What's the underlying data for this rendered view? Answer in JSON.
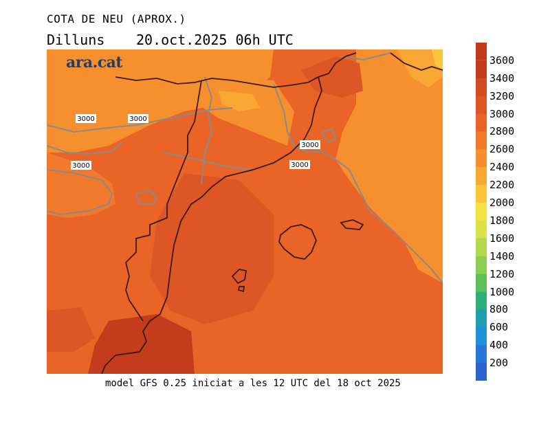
{
  "header": {
    "title": "COTA DE NEU (APROX.)",
    "day": "Dilluns",
    "date": "20.oct.2025 06h UTC"
  },
  "map": {
    "logo": "ara.cat",
    "contour_labels": [
      "3000",
      "3000",
      "3000",
      "3000",
      "3000"
    ]
  },
  "footer": {
    "model_info": "model GFS 0.25 iniciat a les 12 UTC del 18 oct 2025"
  },
  "colorbar": {
    "labels": [
      "3600",
      "3400",
      "3200",
      "3000",
      "2800",
      "2600",
      "2400",
      "2200",
      "2000",
      "1800",
      "1600",
      "1400",
      "1200",
      "1000",
      "800",
      "600",
      "400",
      "200"
    ],
    "colors": [
      "#c43c1c",
      "#d24a20",
      "#de5626",
      "#ea6428",
      "#f17a2c",
      "#f68f2e",
      "#f8a832",
      "#fbc63a",
      "#f4e245",
      "#d8e24a",
      "#b3d84d",
      "#8ccd52",
      "#5cbf5a",
      "#2fae78",
      "#1f9fb0",
      "#2191d8",
      "#2877d8",
      "#2c62cc"
    ]
  }
}
